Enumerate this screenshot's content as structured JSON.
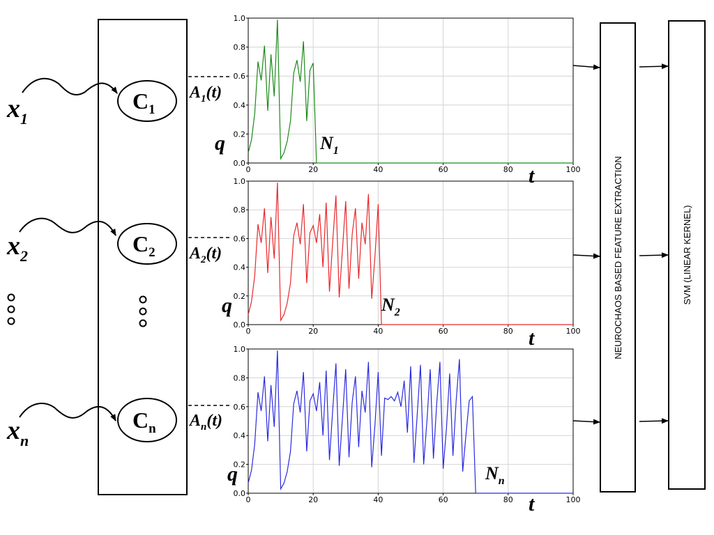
{
  "inputs": [
    {
      "base": "x",
      "sub": "1"
    },
    {
      "base": "x",
      "sub": "2"
    },
    {
      "base": "x",
      "sub": "n"
    }
  ],
  "neurons": [
    {
      "base": "C",
      "sub": "1"
    },
    {
      "base": "C",
      "sub": "2"
    },
    {
      "base": "C",
      "sub": "n"
    }
  ],
  "activities": [
    {
      "base": "A",
      "sub": "1",
      "suffix": "(t)"
    },
    {
      "base": "A",
      "sub": "2",
      "suffix": "(t)"
    },
    {
      "base": "A",
      "sub": "n",
      "suffix": "(t)"
    }
  ],
  "blocks": {
    "feature_extraction": "NEUROCHAOS  BASED FEATURE EXTRACTION",
    "classifier": "SVM (LINEAR KERNEL)"
  },
  "chart_data": [
    {
      "type": "line",
      "color": "#1a8a1a",
      "ylabel": "q",
      "xlabel": "t",
      "firing_label": {
        "base": "N",
        "sub": "1"
      },
      "xlim": [
        0,
        100
      ],
      "ylim": [
        0,
        1.0
      ],
      "xticks": [
        0,
        20,
        40,
        60,
        80,
        100
      ],
      "yticks": [
        0.0,
        0.2,
        0.4,
        0.6,
        0.8,
        1.0
      ],
      "grid": true,
      "x": [
        0,
        1,
        2,
        3,
        4,
        5,
        6,
        7,
        8,
        9,
        10,
        11,
        12,
        13,
        14,
        15,
        16,
        17,
        18,
        19,
        20,
        21,
        22,
        23,
        24,
        25,
        26,
        27,
        28,
        29,
        30,
        31,
        32,
        33,
        34,
        35,
        36,
        37,
        38,
        39,
        40,
        41,
        42,
        43,
        44,
        45,
        46,
        47,
        48,
        49,
        50,
        51,
        52,
        53,
        54,
        55,
        56,
        57,
        58,
        59,
        60,
        61,
        62,
        63,
        64,
        65,
        66,
        67,
        68,
        69,
        70,
        71,
        72,
        73,
        74,
        75,
        76,
        77,
        78,
        79,
        80,
        81,
        82,
        83,
        84,
        85,
        86,
        87,
        88,
        89,
        90,
        91,
        92,
        93,
        94,
        95,
        96,
        97,
        98,
        99,
        100
      ],
      "y": [
        0.07,
        0.16,
        0.34,
        0.7,
        0.57,
        0.81,
        0.36,
        0.75,
        0.46,
        0.99,
        0.03,
        0.07,
        0.15,
        0.29,
        0.62,
        0.71,
        0.56,
        0.84,
        0.29,
        0.64,
        0.69,
        0,
        0,
        0,
        0,
        0,
        0,
        0,
        0,
        0,
        0,
        0,
        0,
        0,
        0,
        0,
        0,
        0,
        0,
        0,
        0,
        0,
        0,
        0,
        0,
        0,
        0,
        0,
        0,
        0,
        0,
        0,
        0,
        0,
        0,
        0,
        0,
        0,
        0,
        0,
        0,
        0,
        0,
        0,
        0,
        0,
        0,
        0,
        0,
        0,
        0,
        0,
        0,
        0,
        0,
        0,
        0,
        0,
        0,
        0,
        0,
        0,
        0,
        0,
        0,
        0,
        0,
        0,
        0,
        0,
        0,
        0,
        0,
        0,
        0,
        0,
        0,
        0,
        0,
        0,
        0
      ]
    },
    {
      "type": "line",
      "color": "#e8282a",
      "ylabel": "q",
      "xlabel": "t",
      "firing_label": {
        "base": "N",
        "sub": "2"
      },
      "xlim": [
        0,
        100
      ],
      "ylim": [
        0,
        1.0
      ],
      "xticks": [
        0,
        20,
        40,
        60,
        80,
        100
      ],
      "yticks": [
        0.0,
        0.2,
        0.4,
        0.6,
        0.8,
        1.0
      ],
      "grid": true,
      "x": [
        0,
        1,
        2,
        3,
        4,
        5,
        6,
        7,
        8,
        9,
        10,
        11,
        12,
        13,
        14,
        15,
        16,
        17,
        18,
        19,
        20,
        21,
        22,
        23,
        24,
        25,
        26,
        27,
        28,
        29,
        30,
        31,
        32,
        33,
        34,
        35,
        36,
        37,
        38,
        39,
        40,
        41,
        42,
        43,
        44,
        45,
        46,
        47,
        48,
        49,
        50,
        51,
        52,
        53,
        54,
        55,
        56,
        57,
        58,
        59,
        60,
        61,
        62,
        63,
        64,
        65,
        66,
        67,
        68,
        69,
        70,
        71,
        72,
        73,
        74,
        75,
        76,
        77,
        78,
        79,
        80,
        81,
        82,
        83,
        84,
        85,
        86,
        87,
        88,
        89,
        90,
        91,
        92,
        93,
        94,
        95,
        96,
        97,
        98,
        99,
        100
      ],
      "y": [
        0.07,
        0.16,
        0.34,
        0.7,
        0.57,
        0.81,
        0.36,
        0.75,
        0.46,
        0.99,
        0.03,
        0.07,
        0.15,
        0.29,
        0.62,
        0.71,
        0.56,
        0.84,
        0.29,
        0.64,
        0.69,
        0.57,
        0.77,
        0.4,
        0.85,
        0.23,
        0.58,
        0.9,
        0.19,
        0.52,
        0.86,
        0.25,
        0.63,
        0.81,
        0.32,
        0.71,
        0.56,
        0.91,
        0.18,
        0.47,
        0.84,
        0,
        0,
        0,
        0,
        0,
        0,
        0,
        0,
        0,
        0,
        0,
        0,
        0,
        0,
        0,
        0,
        0,
        0,
        0,
        0,
        0,
        0,
        0,
        0,
        0,
        0,
        0,
        0,
        0,
        0,
        0,
        0,
        0,
        0,
        0,
        0,
        0,
        0,
        0,
        0,
        0,
        0,
        0,
        0,
        0,
        0,
        0,
        0,
        0,
        0,
        0,
        0,
        0,
        0,
        0,
        0,
        0,
        0,
        0,
        0
      ]
    },
    {
      "type": "line",
      "color": "#2a2ae0",
      "ylabel": "q",
      "xlabel": "t",
      "firing_label": {
        "base": "N",
        "sub": "n"
      },
      "xlim": [
        0,
        100
      ],
      "ylim": [
        0,
        1.0
      ],
      "xticks": [
        0,
        20,
        40,
        60,
        80,
        100
      ],
      "yticks": [
        0.0,
        0.2,
        0.4,
        0.6,
        0.8,
        1.0
      ],
      "grid": true,
      "x": [
        0,
        1,
        2,
        3,
        4,
        5,
        6,
        7,
        8,
        9,
        10,
        11,
        12,
        13,
        14,
        15,
        16,
        17,
        18,
        19,
        20,
        21,
        22,
        23,
        24,
        25,
        26,
        27,
        28,
        29,
        30,
        31,
        32,
        33,
        34,
        35,
        36,
        37,
        38,
        39,
        40,
        41,
        42,
        43,
        44,
        45,
        46,
        47,
        48,
        49,
        50,
        51,
        52,
        53,
        54,
        55,
        56,
        57,
        58,
        59,
        60,
        61,
        62,
        63,
        64,
        65,
        66,
        67,
        68,
        69,
        70,
        71,
        72,
        73,
        74,
        75,
        76,
        77,
        78,
        79,
        80,
        81,
        82,
        83,
        84,
        85,
        86,
        87,
        88,
        89,
        90,
        91,
        92,
        93,
        94,
        95,
        96,
        97,
        98,
        99,
        100
      ],
      "y": [
        0.07,
        0.16,
        0.34,
        0.7,
        0.57,
        0.81,
        0.36,
        0.75,
        0.46,
        0.99,
        0.03,
        0.07,
        0.15,
        0.29,
        0.62,
        0.71,
        0.56,
        0.84,
        0.29,
        0.64,
        0.69,
        0.57,
        0.77,
        0.4,
        0.85,
        0.23,
        0.58,
        0.9,
        0.19,
        0.52,
        0.86,
        0.25,
        0.63,
        0.81,
        0.32,
        0.71,
        0.56,
        0.91,
        0.18,
        0.47,
        0.84,
        0.26,
        0.66,
        0.65,
        0.67,
        0.64,
        0.7,
        0.6,
        0.78,
        0.42,
        0.88,
        0.21,
        0.54,
        0.89,
        0.2,
        0.5,
        0.86,
        0.24,
        0.62,
        0.91,
        0.17,
        0.45,
        0.83,
        0.26,
        0.64,
        0.93,
        0.15,
        0.4,
        0.64,
        0.67,
        0,
        0,
        0,
        0,
        0,
        0,
        0,
        0,
        0,
        0,
        0,
        0,
        0,
        0,
        0,
        0,
        0,
        0,
        0,
        0,
        0,
        0,
        0,
        0,
        0,
        0,
        0,
        0,
        0,
        0,
        0
      ]
    }
  ]
}
